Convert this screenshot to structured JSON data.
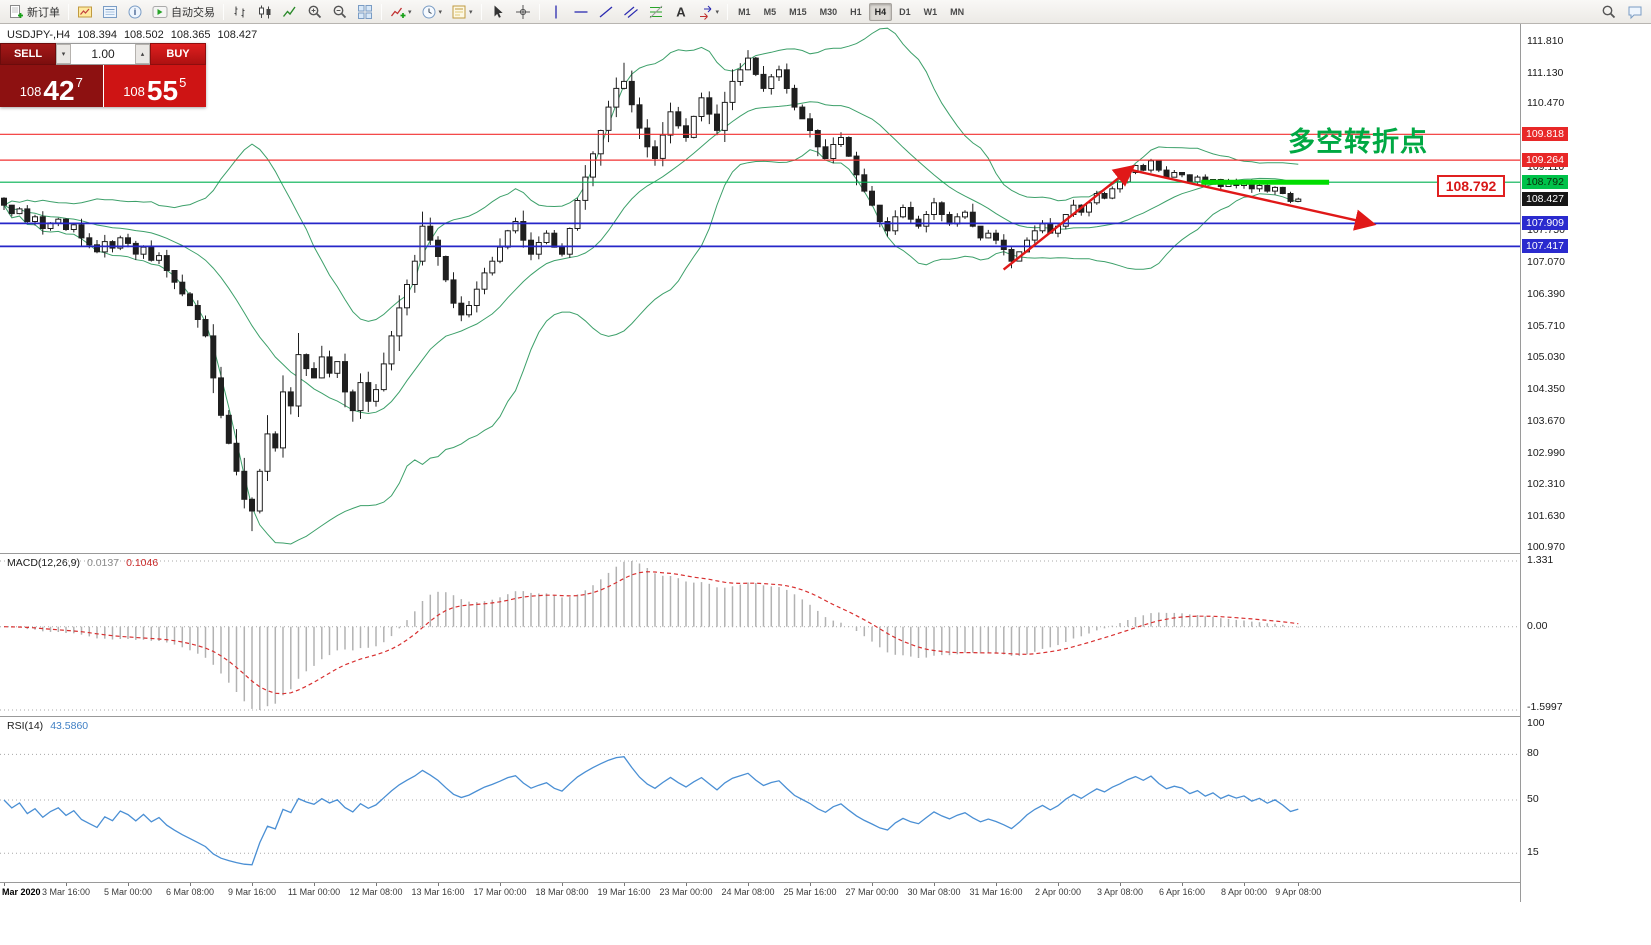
{
  "toolbar": {
    "caret_glyph": "▾",
    "active_timeframe": "H4",
    "items": [
      {
        "t": "btn",
        "name": "new-order-button",
        "icon": "new-order",
        "label": "新订单"
      },
      {
        "t": "sep"
      },
      {
        "t": "icon",
        "name": "profiles-icon",
        "icon": "profiles"
      },
      {
        "t": "icon",
        "name": "market-watch-icon",
        "icon": "market-watch"
      },
      {
        "t": "icon",
        "name": "data-window-icon",
        "icon": "data-window"
      },
      {
        "t": "btn",
        "name": "auto-trading-button",
        "icon": "auto-trading",
        "label": "自动交易"
      },
      {
        "t": "sep"
      },
      {
        "t": "icon",
        "name": "bar-chart-mode-icon",
        "icon": "bars"
      },
      {
        "t": "icon",
        "name": "candlestick-mode-icon",
        "icon": "candles"
      },
      {
        "t": "icon",
        "name": "line-chart-mode-icon",
        "icon": "linechart"
      },
      {
        "t": "icon",
        "name": "zoom-in-icon",
        "icon": "zoom-in"
      },
      {
        "t": "icon",
        "name": "zoom-out-icon",
        "icon": "zoom-out"
      },
      {
        "t": "icon",
        "name": "tile-windows-icon",
        "icon": "tile"
      },
      {
        "t": "sep"
      },
      {
        "t": "icon",
        "name": "indicators-icon",
        "icon": "indicators",
        "caret": true
      },
      {
        "t": "icon",
        "name": "periods-icon",
        "icon": "clock",
        "caret": true
      },
      {
        "t": "icon",
        "name": "templates-icon",
        "icon": "template",
        "caret": true
      },
      {
        "t": "sep"
      },
      {
        "t": "icon",
        "name": "cursor-icon",
        "icon": "cursor"
      },
      {
        "t": "icon",
        "name": "crosshair-icon",
        "icon": "crosshair"
      },
      {
        "t": "sep"
      },
      {
        "t": "icon",
        "name": "vertical-line-icon",
        "icon": "vline"
      },
      {
        "t": "icon",
        "name": "horizontal-line-icon",
        "icon": "hline"
      },
      {
        "t": "icon",
        "name": "trendline-icon",
        "icon": "trend"
      },
      {
        "t": "icon",
        "name": "channel-icon",
        "icon": "channel"
      },
      {
        "t": "icon",
        "name": "fibonacci-icon",
        "icon": "fibo"
      },
      {
        "t": "icon",
        "name": "text-icon",
        "icon": "text-a"
      },
      {
        "t": "icon",
        "name": "arrows-icon",
        "icon": "shapes",
        "caret": true
      },
      {
        "t": "sep"
      },
      {
        "t": "tf",
        "label": "M1"
      },
      {
        "t": "tf",
        "label": "M5"
      },
      {
        "t": "tf",
        "label": "M15"
      },
      {
        "t": "tf",
        "label": "M30"
      },
      {
        "t": "tf",
        "label": "H1"
      },
      {
        "t": "tf",
        "label": "H4"
      },
      {
        "t": "tf",
        "label": "D1"
      },
      {
        "t": "tf",
        "label": "W1"
      },
      {
        "t": "tf",
        "label": "MN"
      }
    ],
    "right_items": [
      {
        "t": "icon",
        "name": "search-icon",
        "icon": "search"
      },
      {
        "t": "icon",
        "name": "chat-icon",
        "icon": "chat"
      }
    ]
  },
  "symbol_info": {
    "name": "USDJPY-,H4",
    "open": "108.394",
    "high": "108.502",
    "low": "108.365",
    "close": "108.427"
  },
  "trade_panel": {
    "sell_label": "SELL",
    "buy_label": "BUY",
    "volume": "1.00",
    "down_glyph": "▾",
    "up_glyph": "▴",
    "sell_price": {
      "prefix": "108",
      "big": "42",
      "sup": "7"
    },
    "buy_price": {
      "prefix": "108",
      "big": "55",
      "sup": "5"
    }
  },
  "annotations": {
    "turning_point_text": "多空转折点",
    "price_label_box": "108.792"
  },
  "price_scale": {
    "labels": [
      {
        "text": "111.810",
        "price": 111.81
      },
      {
        "text": "111.130",
        "price": 111.13
      },
      {
        "text": "110.470",
        "price": 110.47
      },
      {
        "text": "109.110",
        "price": 109.11
      },
      {
        "text": "107.750",
        "price": 107.75
      },
      {
        "text": "107.070",
        "price": 107.07
      },
      {
        "text": "106.390",
        "price": 106.39
      },
      {
        "text": "105.710",
        "price": 105.71
      },
      {
        "text": "105.030",
        "price": 105.03
      },
      {
        "text": "104.350",
        "price": 104.35
      },
      {
        "text": "103.670",
        "price": 103.67
      },
      {
        "text": "102.990",
        "price": 102.99
      },
      {
        "text": "102.310",
        "price": 102.31
      },
      {
        "text": "101.630",
        "price": 101.63
      },
      {
        "text": "100.970",
        "price": 100.97
      }
    ],
    "tags": [
      {
        "text": "109.818",
        "price": 109.818,
        "bg": "#e82828",
        "fg": "#ffffff"
      },
      {
        "text": "109.264",
        "price": 109.264,
        "bg": "#e82828",
        "fg": "#ffffff"
      },
      {
        "text": "108.792",
        "price": 108.792,
        "bg": "#00c24a",
        "fg": "#0a2a0a"
      },
      {
        "text": "108.427",
        "price": 108.427,
        "bg": "#161616",
        "fg": "#ffffff"
      },
      {
        "text": "107.909",
        "price": 107.909,
        "bg": "#2a2ace",
        "fg": "#ffffff"
      },
      {
        "text": "107.417",
        "price": 107.417,
        "bg": "#2a2ace",
        "fg": "#ffffff"
      }
    ]
  },
  "hlines": [
    {
      "price": 109.818,
      "color": "#f23030",
      "width": 1.2
    },
    {
      "price": 109.264,
      "color": "#f23030",
      "width": 1.2
    },
    {
      "price": 108.792,
      "color": "#00b050",
      "width": 1.2
    },
    {
      "price": 107.909,
      "color": "#2626c8",
      "width": 1.8
    },
    {
      "price": 107.417,
      "color": "#2626c8",
      "width": 1.8
    }
  ],
  "chart_data": {
    "type": "candlestick",
    "symbol": "USDJPY-",
    "timeframe": "H4",
    "price_range": [
      100.85,
      112.18
    ],
    "first_open": 108.45,
    "closes": [
      108.3,
      108.12,
      108.22,
      107.95,
      108.05,
      107.8,
      107.92,
      108.0,
      107.78,
      107.88,
      107.6,
      107.45,
      107.3,
      107.52,
      107.38,
      107.6,
      107.48,
      107.25,
      107.4,
      107.12,
      107.22,
      106.9,
      106.65,
      106.4,
      106.15,
      105.85,
      105.5,
      104.6,
      103.8,
      103.2,
      102.6,
      102.0,
      101.75,
      102.6,
      103.4,
      103.1,
      104.3,
      104.0,
      105.1,
      104.8,
      104.6,
      105.05,
      104.7,
      104.95,
      104.3,
      103.9,
      104.5,
      104.1,
      104.35,
      104.9,
      105.5,
      106.1,
      106.6,
      107.1,
      107.85,
      107.55,
      107.2,
      106.7,
      106.2,
      105.95,
      106.15,
      106.5,
      106.85,
      107.1,
      107.4,
      107.75,
      107.95,
      107.55,
      107.25,
      107.5,
      107.7,
      107.4,
      107.25,
      107.8,
      108.4,
      108.9,
      109.4,
      109.9,
      110.4,
      110.8,
      110.95,
      110.45,
      109.95,
      109.55,
      109.3,
      109.8,
      110.3,
      110.0,
      109.75,
      110.2,
      110.6,
      110.25,
      109.9,
      110.5,
      110.95,
      111.2,
      111.45,
      111.1,
      110.8,
      111.05,
      111.2,
      110.8,
      110.4,
      110.15,
      109.9,
      109.55,
      109.3,
      109.6,
      109.75,
      109.35,
      108.95,
      108.6,
      108.3,
      107.95,
      107.75,
      108.05,
      108.25,
      108.0,
      107.85,
      108.1,
      108.35,
      108.1,
      107.9,
      108.05,
      108.15,
      107.85,
      107.6,
      107.7,
      107.55,
      107.35,
      107.1,
      107.3,
      107.55,
      107.75,
      107.9,
      107.7,
      107.85,
      108.1,
      108.3,
      108.15,
      108.35,
      108.55,
      108.45,
      108.65,
      108.8,
      109.0,
      109.15,
      109.05,
      109.25,
      109.05,
      108.9,
      109.0,
      108.95,
      108.8,
      108.9,
      108.75,
      108.85,
      108.7,
      108.8,
      108.72,
      108.78,
      108.65,
      108.72,
      108.6,
      108.68,
      108.55,
      108.38,
      108.43
    ],
    "wick_overrides": {
      "32": {
        "low": 101.32
      },
      "80": {
        "high": 111.35
      },
      "96": {
        "high": 111.62
      }
    },
    "bollinger": {
      "period": 20,
      "deviation": 2
    },
    "macd": {
      "title": "MACD(12,26,9)",
      "params": [
        12,
        26,
        9
      ],
      "value_main": "0.0137",
      "value_signal": "0.1046",
      "scale": {
        "top_text": "1.331",
        "zero_text": "0.00",
        "bottom_text": "-1.5997"
      }
    },
    "rsi": {
      "title": "RSI(14)",
      "period": 14,
      "value": "43.5860",
      "top_label": "100",
      "levels": [
        80,
        50,
        15
      ]
    },
    "time_axis": [
      [
        0,
        "Mar 2020"
      ],
      [
        8,
        "3 Mar 16:00"
      ],
      [
        16,
        "5 Mar 00:00"
      ],
      [
        24,
        "6 Mar 08:00"
      ],
      [
        32,
        "9 Mar 16:00"
      ],
      [
        40,
        "11 Mar 00:00"
      ],
      [
        48,
        "12 Mar 08:00"
      ],
      [
        56,
        "13 Mar 16:00"
      ],
      [
        64,
        "17 Mar 00:00"
      ],
      [
        72,
        "18 Mar 08:00"
      ],
      [
        80,
        "19 Mar 16:00"
      ],
      [
        88,
        "23 Mar 00:00"
      ],
      [
        96,
        "24 Mar 08:00"
      ],
      [
        104,
        "25 Mar 16:00"
      ],
      [
        112,
        "27 Mar 00:00"
      ],
      [
        120,
        "30 Mar 08:00"
      ],
      [
        128,
        "31 Mar 16:00"
      ],
      [
        136,
        "2 Apr 00:00"
      ],
      [
        144,
        "3 Apr 08:00"
      ],
      [
        152,
        "6 Apr 16:00"
      ],
      [
        160,
        "8 Apr 00:00"
      ],
      [
        167,
        "9 Apr 08:00"
      ]
    ],
    "trend_lines": [
      {
        "b1": 129.5,
        "p1": 106.92,
        "b2": 146,
        "p2": 109.1
      },
      {
        "b1": 146,
        "p1": 109.05,
        "b2": 177,
        "p2": 107.9
      }
    ],
    "green_segment": {
      "b1": 155,
      "b2": 171.5,
      "price": 108.792
    },
    "colors": {
      "up": "#ffffff",
      "down": "#1f1f1f",
      "wick": "#1f1f1f",
      "bollinger": "#3da06a",
      "macd_bar": "#b2b2b2",
      "macd_signal": "#d83030",
      "rsi": "#4a8fd4",
      "trend": "#e01818",
      "segment": "#00dd00"
    }
  }
}
